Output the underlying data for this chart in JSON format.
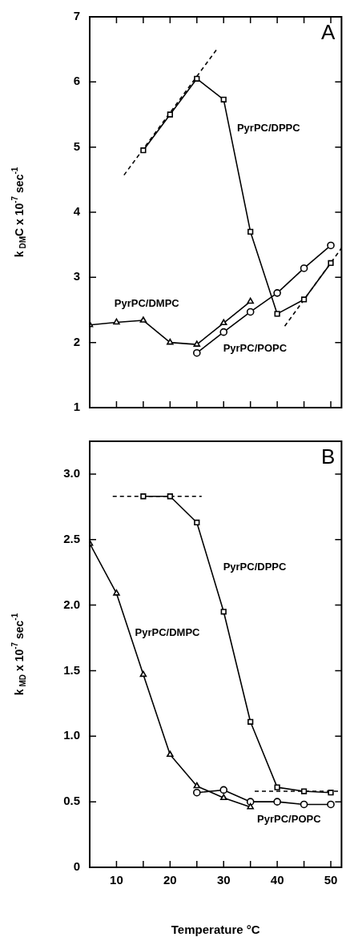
{
  "chart_data": [
    {
      "type": "line",
      "ylabel": "k$_{DM}$C x 10$^{-7}$ sec$^{-1}$",
      "xlim": [
        5,
        52
      ],
      "xticks": [
        10,
        {
          "value": 15,
          "label": null
        },
        20,
        {
          "value": 25,
          "label": null
        },
        30,
        {
          "value": 35,
          "label": null
        },
        40,
        {
          "value": 45,
          "label": null
        },
        50
      ],
      "ylim": [
        1,
        7
      ],
      "yticks": [
        1,
        2,
        3,
        4,
        5,
        6,
        7
      ],
      "tick_labels": "y",
      "grid": false,
      "legend": false,
      "series": [
        {
          "name": "PyrPC/DPPC",
          "color": "#000000",
          "marker": "square",
          "x": [
            15,
            20,
            25,
            30,
            35,
            40,
            45,
            50
          ],
          "values": [
            4.95,
            5.5,
            6.05,
            5.73,
            3.7,
            2.44,
            2.66,
            3.22
          ]
        },
        {
          "name": "PyrPC/DMPC",
          "color": "#000000",
          "marker": "triangle",
          "x": [
            5,
            10,
            15,
            20,
            25,
            30,
            35
          ],
          "values": [
            2.27,
            2.31,
            2.34,
            2.0,
            1.97,
            2.3,
            2.63
          ]
        },
        {
          "name": "PyrPC/POPC",
          "color": "#000000",
          "marker": "circle",
          "x": [
            25,
            30,
            35,
            40,
            45,
            50
          ],
          "values": [
            1.84,
            2.16,
            2.47,
            2.76,
            3.14,
            3.49
          ]
        },
        {
          "color": "#000000",
          "marker": "none",
          "line_style": "dashed",
          "x": [
            11.4,
            28.9
          ],
          "values": [
            4.57,
            6.52
          ]
        },
        {
          "color": "#000000",
          "marker": "none",
          "line_style": "dashed",
          "x": [
            41.4,
            52
          ],
          "values": [
            2.25,
            3.45
          ]
        }
      ],
      "annotations": [
        "A"
      ]
    },
    {
      "type": "line",
      "xlabel": "Temperature °C",
      "ylabel": "k$_{MD}$ x 10$^{-7}$ sec$^{-1}$",
      "xlim": [
        5,
        52
      ],
      "xticks": [
        10,
        {
          "value": 15,
          "label": null
        },
        20,
        {
          "value": 25,
          "label": null
        },
        30,
        {
          "value": 35,
          "label": null
        },
        40,
        {
          "value": 45,
          "label": null
        },
        50
      ],
      "ylim": [
        0,
        3.25
      ],
      "yticks": [
        0,
        {
          "value": 0.5,
          "label": "0.5"
        },
        {
          "value": 1,
          "label": "1.0"
        },
        {
          "value": 1.5,
          "label": "1.5"
        },
        {
          "value": 2,
          "label": "2.0"
        },
        {
          "value": 2.5,
          "label": "2.5"
        },
        {
          "value": 3,
          "label": "3.0"
        }
      ],
      "grid": false,
      "legend": false,
      "series": [
        {
          "name": "PyrPC/DPPC",
          "color": "#000000",
          "marker": "square",
          "x": [
            15,
            20,
            25,
            30,
            35,
            40,
            45,
            50
          ],
          "values": [
            2.83,
            2.83,
            2.63,
            1.95,
            1.11,
            0.61,
            0.58,
            0.57
          ]
        },
        {
          "name": "PyrPC/DMPC",
          "color": "#000000",
          "marker": "triangle",
          "x": [
            5,
            10,
            15,
            20,
            25,
            30,
            35
          ],
          "values": [
            2.47,
            2.09,
            1.47,
            0.86,
            0.62,
            0.53,
            0.46
          ]
        },
        {
          "name": "PyrPC/POPC",
          "color": "#000000",
          "marker": "circle",
          "x": [
            25,
            30,
            35,
            40,
            45,
            50
          ],
          "values": [
            0.57,
            0.59,
            0.5,
            0.5,
            0.48,
            0.48
          ]
        },
        {
          "color": "#000000",
          "marker": "none",
          "line_style": "dashed",
          "x": [
            9.3,
            25.9
          ],
          "values": [
            2.83,
            2.83
          ]
        },
        {
          "color": "#000000",
          "marker": "none",
          "line_style": "dashed",
          "x": [
            35.8,
            52
          ],
          "values": [
            0.58,
            0.58
          ]
        }
      ],
      "annotations": [
        "B"
      ]
    }
  ]
}
